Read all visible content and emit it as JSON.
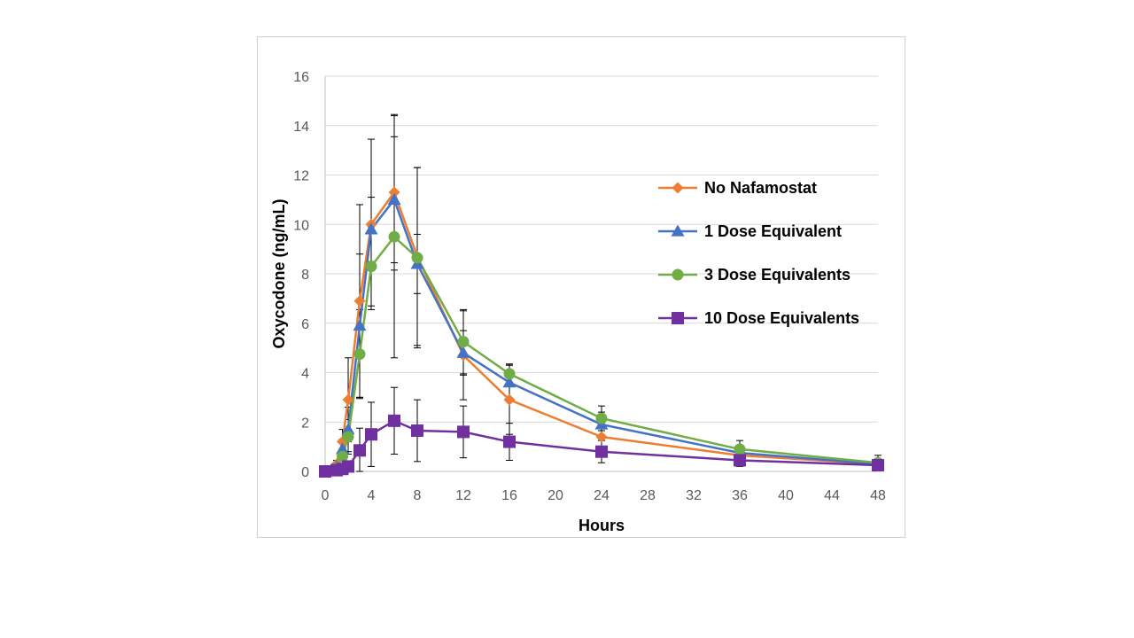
{
  "chart_data": {
    "type": "line",
    "xlabel": "Hours",
    "ylabel": "Oxycodone (ng/mL)",
    "xlim": [
      0,
      48
    ],
    "ylim": [
      0,
      16
    ],
    "xticks": [
      0,
      4,
      8,
      12,
      16,
      20,
      24,
      28,
      32,
      36,
      40,
      44,
      48
    ],
    "yticks": [
      0,
      2,
      4,
      6,
      8,
      10,
      12,
      14,
      16
    ],
    "grid": "horizontal",
    "legend_position": "right",
    "series": [
      {
        "name": "No Nafamostat",
        "color": "#ED7D31",
        "marker": "diamond",
        "points": [
          {
            "x": 0,
            "y": 0,
            "err": 0
          },
          {
            "x": 1,
            "y": 0.3,
            "err": 0.15
          },
          {
            "x": 1.5,
            "y": 1.2,
            "err": 0.5
          },
          {
            "x": 2,
            "y": 2.9,
            "err": 1.7
          },
          {
            "x": 3,
            "y": 6.9,
            "err": 3.9
          },
          {
            "x": 4,
            "y": 10.0,
            "err": 3.45
          },
          {
            "x": 6,
            "y": 11.3,
            "err": 3.15
          },
          {
            "x": 8,
            "y": 8.7,
            "err": 3.6
          },
          {
            "x": 12,
            "y": 4.7,
            "err": 1.8
          },
          {
            "x": 16,
            "y": 2.9,
            "err": 1.4
          },
          {
            "x": 24,
            "y": 1.4,
            "err": 0.6
          },
          {
            "x": 36,
            "y": 0.65,
            "err": 0.3
          },
          {
            "x": 48,
            "y": 0.3,
            "err": 0.15
          }
        ]
      },
      {
        "name": "1 Dose Equivalent",
        "color": "#4472C4",
        "marker": "triangle",
        "points": [
          {
            "x": 0,
            "y": 0,
            "err": 0
          },
          {
            "x": 1,
            "y": 0.2,
            "err": 0.1
          },
          {
            "x": 1.5,
            "y": 0.9,
            "err": 0.4
          },
          {
            "x": 2,
            "y": 1.7,
            "err": 0.9
          },
          {
            "x": 3,
            "y": 5.9,
            "err": 2.9
          },
          {
            "x": 4,
            "y": 9.8,
            "err": 1.3
          },
          {
            "x": 6,
            "y": 11.0,
            "err": 2.55
          },
          {
            "x": 8,
            "y": 8.4,
            "err": 1.2
          },
          {
            "x": 12,
            "y": 4.8,
            "err": 0.9
          },
          {
            "x": 16,
            "y": 3.6,
            "err": 0.7
          },
          {
            "x": 24,
            "y": 1.9,
            "err": 0.5
          },
          {
            "x": 36,
            "y": 0.75,
            "err": 0.3
          },
          {
            "x": 48,
            "y": 0.3,
            "err": 0.2
          }
        ]
      },
      {
        "name": "3 Dose Equivalents",
        "color": "#70AD47",
        "marker": "circle",
        "points": [
          {
            "x": 0,
            "y": 0,
            "err": 0
          },
          {
            "x": 1,
            "y": 0.15,
            "err": 0.1
          },
          {
            "x": 1.5,
            "y": 0.6,
            "err": 0.3
          },
          {
            "x": 2,
            "y": 1.4,
            "err": 0.7
          },
          {
            "x": 3,
            "y": 4.75,
            "err": 1.8
          },
          {
            "x": 4,
            "y": 8.3,
            "err": 1.6
          },
          {
            "x": 6,
            "y": 9.5,
            "err": 4.9
          },
          {
            "x": 8,
            "y": 8.65,
            "err": 3.65
          },
          {
            "x": 12,
            "y": 5.25,
            "err": 1.3
          },
          {
            "x": 16,
            "y": 3.95,
            "err": 0.4
          },
          {
            "x": 24,
            "y": 2.15,
            "err": 0.5
          },
          {
            "x": 36,
            "y": 0.9,
            "err": 0.35
          },
          {
            "x": 48,
            "y": 0.35,
            "err": 0.3
          }
        ]
      },
      {
        "name": "10 Dose Equivalents",
        "color": "#7030A0",
        "marker": "square",
        "points": [
          {
            "x": 0,
            "y": 0,
            "err": 0
          },
          {
            "x": 1,
            "y": 0.05,
            "err": 0.05
          },
          {
            "x": 1.5,
            "y": 0.1,
            "err": 0.05
          },
          {
            "x": 2,
            "y": 0.2,
            "err": 0.1
          },
          {
            "x": 3,
            "y": 0.85,
            "err": 0.9
          },
          {
            "x": 4,
            "y": 1.5,
            "err": 1.3
          },
          {
            "x": 6,
            "y": 2.05,
            "err": 1.35
          },
          {
            "x": 8,
            "y": 1.65,
            "err": 1.25
          },
          {
            "x": 12,
            "y": 1.6,
            "err": 1.05
          },
          {
            "x": 16,
            "y": 1.2,
            "err": 0.75
          },
          {
            "x": 24,
            "y": 0.8,
            "err": 0.45
          },
          {
            "x": 36,
            "y": 0.45,
            "err": 0.25
          },
          {
            "x": 48,
            "y": 0.25,
            "err": 0.15
          }
        ]
      }
    ]
  }
}
